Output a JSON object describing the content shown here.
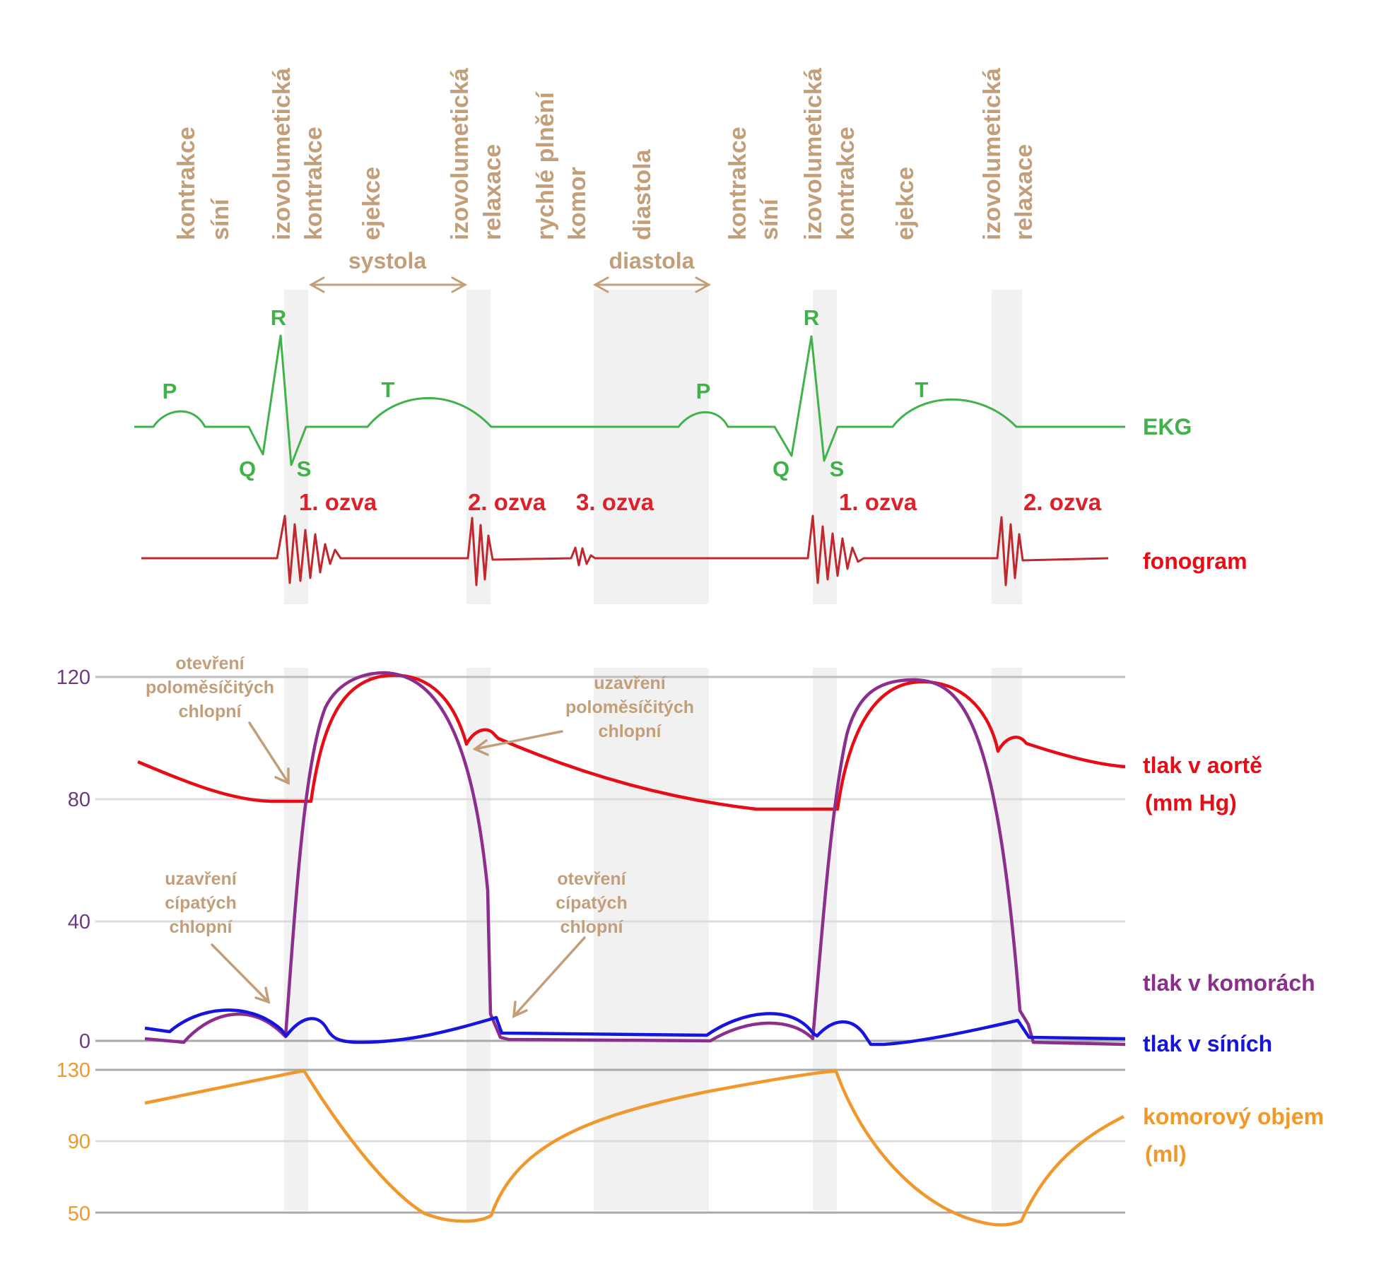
{
  "colors": {
    "tan": "#c29e79",
    "ekg": "#3fb34a",
    "phono": "#c0282e",
    "aorta": "#e60d16",
    "ventricle": "#8b2e8e",
    "atrium": "#1515dd",
    "volume": "#f0982c",
    "pressure_ticks": "#6b3a86",
    "shade": "#f1f1f1",
    "grid": "#dcdcdc"
  },
  "phases": [
    {
      "lines": [
        "kontrakce",
        "síní"
      ]
    },
    {
      "lines": [
        "izovolumetická",
        "kontrakce"
      ]
    },
    {
      "lines": [
        "ejekce"
      ]
    },
    {
      "lines": [
        "izovolumetická",
        "relaxace"
      ]
    },
    {
      "lines": [
        "rychlé plnění",
        "komor"
      ]
    },
    {
      "lines": [
        "diastola"
      ]
    },
    {
      "lines": [
        "kontrakce",
        "síní"
      ]
    },
    {
      "lines": [
        "izovolumetická",
        "kontrakce"
      ]
    },
    {
      "lines": [
        "ejekce"
      ]
    },
    {
      "lines": [
        "izovolumetická",
        "relaxace"
      ]
    }
  ],
  "brackets": {
    "systola": "systola",
    "diastola": "diastola"
  },
  "ekg": {
    "label": "EKG",
    "waves": {
      "P": "P",
      "Q": "Q",
      "R": "R",
      "S": "S",
      "T": "T"
    }
  },
  "phonogram": {
    "label": "fonogram",
    "sounds": [
      "1. ozva",
      "2. ozva",
      "3. ozva",
      "1. ozva",
      "2. ozva"
    ]
  },
  "annotations": {
    "open_semilunar": [
      "otevření",
      "poloměsíčitých",
      "chlopní"
    ],
    "close_semilunar": [
      "uzavření",
      "poloměsíčitých",
      "chlopní"
    ],
    "close_av": [
      "uzavření",
      "cípatých",
      "chlopní"
    ],
    "open_av": [
      "otevření",
      "cípatých",
      "chlopní"
    ]
  },
  "pressure_axis": {
    "ticks": [
      "120",
      "80",
      "40",
      "0"
    ]
  },
  "volume_axis": {
    "ticks": [
      "130",
      "90",
      "50"
    ]
  },
  "series": {
    "aorta": [
      "tlak v aortě",
      "(mm Hg)"
    ],
    "ventricle": "tlak v komorách",
    "atrium": "tlak v síních",
    "volume": [
      "komorový objem",
      "(ml)"
    ]
  }
}
